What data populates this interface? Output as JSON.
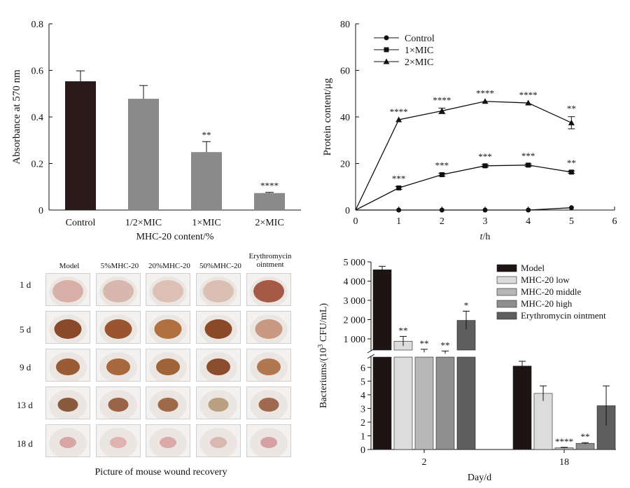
{
  "chart_data": [
    {
      "type": "bar",
      "id": "A",
      "categories": [
        "Control",
        "1/2×MIC",
        "1×MIC",
        "2×MIC"
      ],
      "values": [
        0.553,
        0.478,
        0.249,
        0.073
      ],
      "errors": [
        0.045,
        0.057,
        0.045,
        0.003
      ],
      "significance": [
        "",
        "",
        "**",
        "****"
      ],
      "colors": [
        "#2a1b18",
        "#8a8a8a",
        "#8a8a8a",
        "#8a8a8a"
      ],
      "ylabel": "Absorbance at 570 nm",
      "xlabel": "MHC-20 content/%",
      "ylim": [
        0,
        0.8
      ],
      "yticks": [
        "0",
        "0.2",
        "0.4",
        "0.6",
        "0.8"
      ]
    },
    {
      "type": "line",
      "id": "B",
      "x": [
        0,
        1,
        2,
        3,
        4,
        5
      ],
      "series": [
        {
          "name": "Control",
          "marker": "circle",
          "values": [
            0,
            0,
            0,
            0,
            0,
            1
          ],
          "errors": [
            0,
            0,
            0,
            0,
            0,
            0
          ],
          "significance": [
            "",
            "",
            "",
            "",
            "",
            ""
          ]
        },
        {
          "name": "1×MIC",
          "marker": "square",
          "values": [
            0,
            9.5,
            15.2,
            19,
            19.3,
            16.3
          ],
          "errors": [
            0,
            0.6,
            0.6,
            0.5,
            0.5,
            0.5
          ],
          "significance": [
            "",
            "***",
            "***",
            "***",
            "***",
            "**"
          ]
        },
        {
          "name": "2×MIC",
          "marker": "triangle",
          "values": [
            0,
            38.8,
            42.6,
            46.7,
            46,
            37.5
          ],
          "errors": [
            0,
            0,
            1.2,
            0,
            0,
            2.6
          ],
          "significance": [
            "",
            "****",
            "****",
            "****",
            "****",
            "**"
          ]
        }
      ],
      "ylabel": "Protein content/μg",
      "xlabel_italic": "t",
      "xlabel_unit": "/h",
      "xlim": [
        0,
        6
      ],
      "ylim": [
        0,
        80
      ],
      "xticks": [
        "0",
        "1",
        "2",
        "3",
        "4",
        "5",
        "6"
      ],
      "yticks": [
        "0",
        "20",
        "40",
        "60",
        "80"
      ],
      "legend": "top-left"
    },
    {
      "type": "bar",
      "id": "D",
      "categories": [
        "2",
        "18"
      ],
      "series": [
        {
          "name": "Model",
          "color": "#1e1414",
          "values": [
            4590,
            6.1
          ],
          "errors": [
            180,
            0.35
          ],
          "significance": [
            "",
            ""
          ]
        },
        {
          "name": "MHC-20 low",
          "color": "#dcdcdc",
          "values": [
            880,
            4.1
          ],
          "errors": [
            250,
            0.55
          ],
          "significance": [
            "**",
            ""
          ]
        },
        {
          "name": "MHC-20 middle",
          "color": "#b7b7b7",
          "values": [
            380,
            0.12
          ],
          "errors": [
            80,
            0.04
          ],
          "significance": [
            "**",
            "****"
          ]
        },
        {
          "name": "MHC-20 high",
          "color": "#8e8e8e",
          "values": [
            300,
            0.45
          ],
          "errors": [
            70,
            0.05
          ],
          "significance": [
            "**",
            "**"
          ]
        },
        {
          "name": "Erythromycin ointment",
          "color": "#5e5e5e",
          "values": [
            1960,
            3.2
          ],
          "errors": [
            480,
            1.45
          ],
          "significance": [
            "*",
            ""
          ]
        }
      ],
      "ylabel_pre": "Bacteriums/(10",
      "ylabel_sup": "3",
      "ylabel_post": " CFU/mL)",
      "xlabel": "Day/d",
      "y_break": true,
      "ylim_upper": [
        600,
        5000
      ],
      "ylim_lower": [
        0,
        6.5
      ],
      "yticks_upper": [
        "1 000",
        "2 000",
        "3 000",
        "4 000",
        "5 000"
      ],
      "yticks_lower": [
        "0",
        "1",
        "2",
        "3",
        "4",
        "5",
        "6"
      ],
      "legend": "top-right"
    }
  ],
  "photo_panel": {
    "columns": [
      "Model",
      "5%MHC-20",
      "20%MHC-20",
      "50%MHC-20",
      "Erythromycin ointment"
    ],
    "rows": [
      "1 d",
      "5 d",
      "9 d",
      "13 d",
      "18 d"
    ],
    "caption": "Picture of mouse wound recovery",
    "wound_colors": [
      [
        "#d9b0a8",
        "#d8b8ae",
        "#dcc0b4",
        "#dbbfb2",
        "#a55a48"
      ],
      [
        "#8a4a2a",
        "#9a5530",
        "#b07040",
        "#8a4a28",
        "#c89880"
      ],
      [
        "#9a5a34",
        "#a8683e",
        "#a06238",
        "#8a4e2e",
        "#b07850"
      ],
      [
        "#8a5a3c",
        "#9a6448",
        "#9e6a4a",
        "#b8a080",
        "#a06a50"
      ],
      [
        "#d9a6a6",
        "#e0b2b0",
        "#dcaaa8",
        "#d8b8b0",
        "#d6a0a4"
      ]
    ]
  }
}
